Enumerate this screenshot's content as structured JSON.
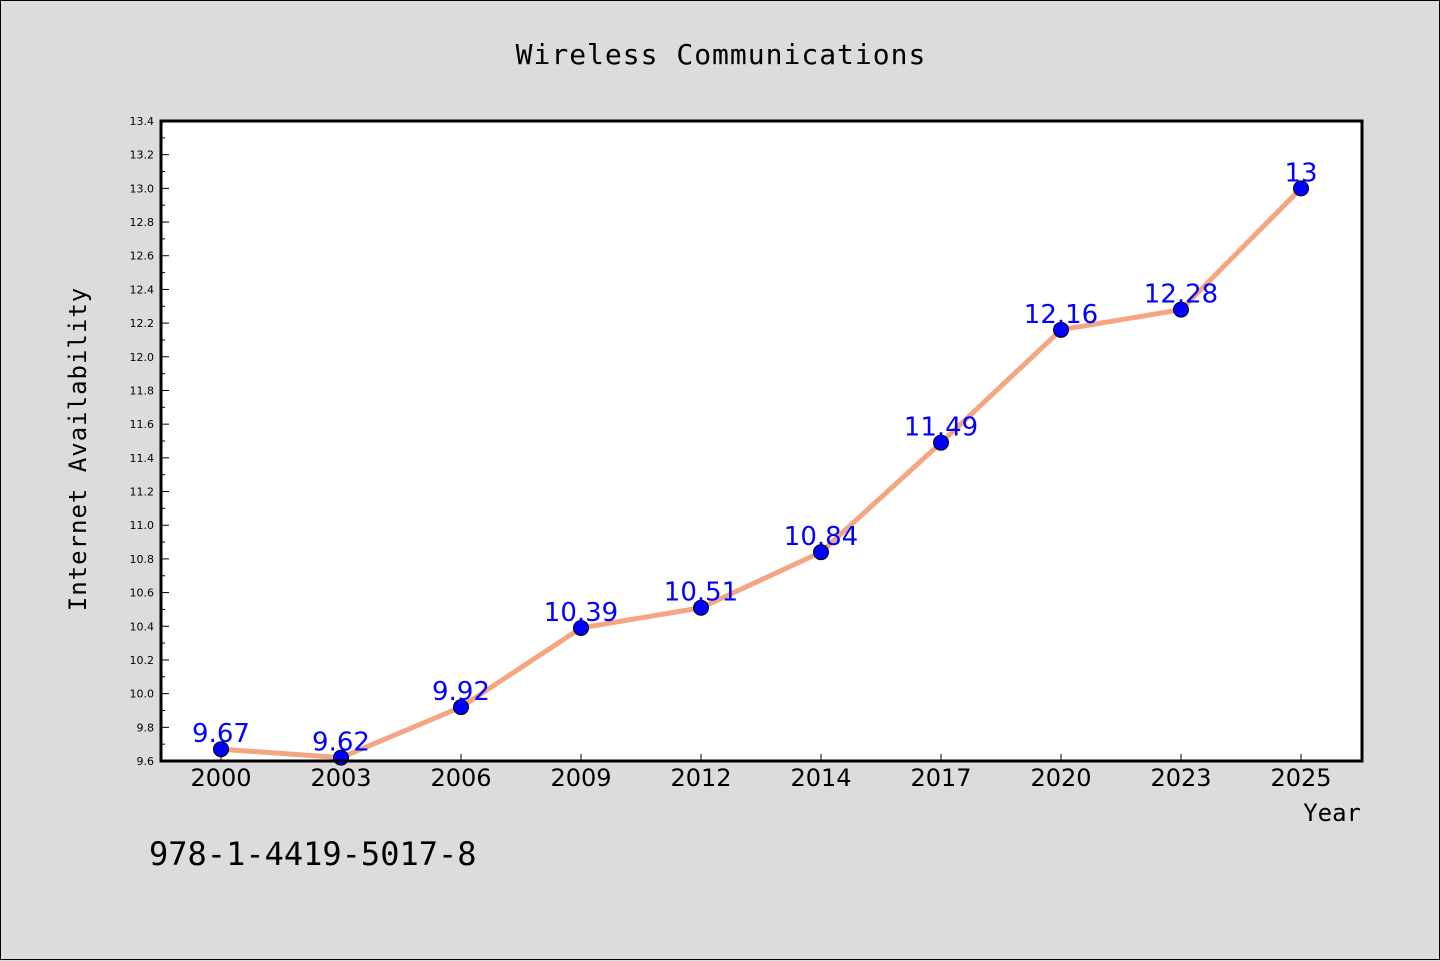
{
  "chart_data": {
    "type": "line",
    "title": "Wireless Communications",
    "xlabel": "Year",
    "ylabel": "Internet Availability",
    "categories": [
      "2000",
      "2003",
      "2006",
      "2009",
      "2012",
      "2014",
      "2017",
      "2020",
      "2023",
      "2025"
    ],
    "series": [
      {
        "values": [
          9.67,
          9.62,
          9.92,
          10.39,
          10.51,
          10.84,
          11.49,
          12.16,
          12.28,
          13
        ],
        "labels": [
          "9.67",
          "9.62",
          "9.92",
          "10.39",
          "10.51",
          "10.84",
          "11.49",
          "12.16",
          "12.28",
          "13"
        ],
        "line_color": "#f4a582",
        "marker_color": "#0000ff"
      }
    ],
    "ylim": [
      9.6,
      13.4
    ],
    "yticks": [
      "9.6",
      "9.8",
      "10.0",
      "10.2",
      "10.4",
      "10.6",
      "10.8",
      "11.0",
      "11.2",
      "11.4",
      "11.6",
      "11.8",
      "12.0",
      "12.2",
      "12.4",
      "12.6",
      "12.8",
      "13.0",
      "13.2",
      "13.4"
    ],
    "grid": false,
    "legend": "none",
    "plot_background": "#ffffff",
    "figure_background": "#dcdcdc"
  },
  "footer": {
    "isbn": "978-1-4419-5017-8"
  }
}
